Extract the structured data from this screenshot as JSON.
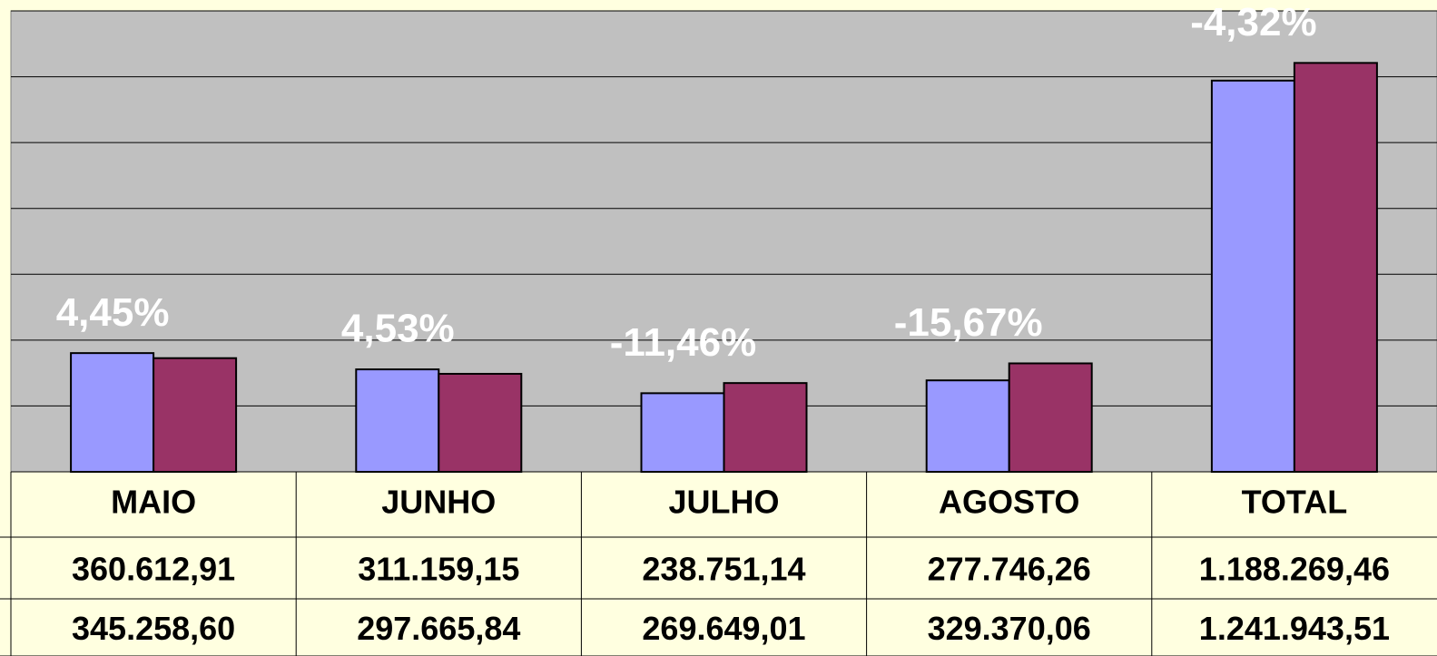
{
  "chart_data": {
    "type": "bar",
    "categories": [
      "MAIO",
      "JUNHO",
      "JULHO",
      "AGOSTO",
      "TOTAL"
    ],
    "series": [
      {
        "color": "#9999ff",
        "values": [
          360612.91,
          311159.15,
          238751.14,
          277746.26,
          1188269.46
        ],
        "value_labels": [
          "360.612,91",
          "311.159,15",
          "238.751,14",
          "277.746,26",
          "1.188.269,46"
        ]
      },
      {
        "color": "#993366",
        "values": [
          345258.6,
          297665.84,
          269649.01,
          329370.06,
          1241943.51
        ],
        "value_labels": [
          "345.258,60",
          "297.665,84",
          "269.649,01",
          "329.370,06",
          "1.241.943,51"
        ]
      }
    ],
    "annotations": [
      "4,45%",
      "4,53%",
      "-11,46%",
      "-15,67%",
      "-4,32%"
    ],
    "ylim": [
      0,
      1400000
    ],
    "yticks": [
      0,
      200000,
      400000,
      600000,
      800000,
      1000000,
      1200000,
      1400000
    ],
    "grid": true
  }
}
